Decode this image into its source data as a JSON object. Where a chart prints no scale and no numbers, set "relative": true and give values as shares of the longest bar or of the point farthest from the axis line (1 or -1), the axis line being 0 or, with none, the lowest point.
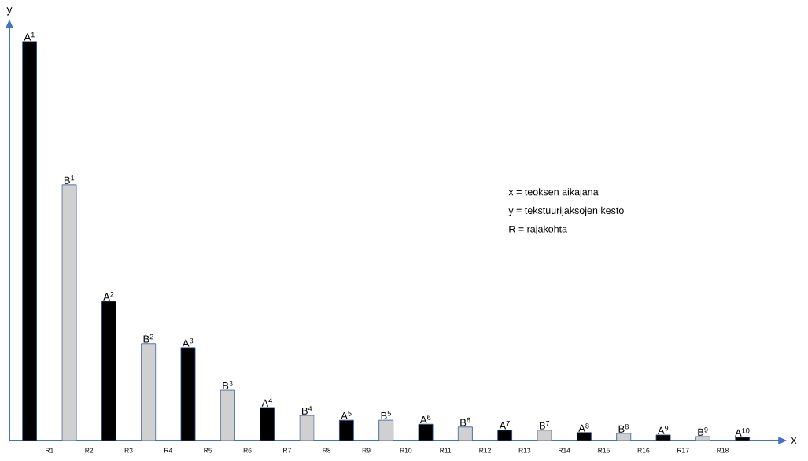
{
  "chart_data": {
    "type": "bar",
    "relative": true,
    "xlabel": "x",
    "ylabel": "y",
    "categories": [
      null,
      "R1",
      null,
      "R2",
      null,
      "R3",
      null,
      "R4",
      null,
      "R5",
      null,
      "R6",
      null,
      "R7",
      null,
      "R8",
      null,
      "R9",
      null,
      "R10",
      null,
      "R11",
      null,
      "R12",
      null,
      "R13",
      null,
      "R14",
      null,
      "R15",
      null,
      "R16",
      null,
      "R17",
      null,
      "R18",
      null
    ],
    "values": [
      1,
      null,
      0.641,
      null,
      0.349,
      null,
      0.243,
      null,
      0.233,
      null,
      0.126,
      null,
      0.083,
      null,
      0.063,
      null,
      0.051,
      null,
      0.051,
      null,
      0.041,
      null,
      0.034,
      null,
      0.026,
      null,
      0.026,
      null,
      0.02,
      null,
      0.018,
      null,
      0.014,
      null,
      0.01,
      null,
      0.008
    ],
    "colors": [
      "#000000",
      null,
      "#d0d0d0",
      null,
      "#000000",
      null,
      "#d0d0d0",
      null,
      "#000000",
      null,
      "#d0d0d0",
      null,
      "#000000",
      null,
      "#d0d0d0",
      null,
      "#000000",
      null,
      "#d0d0d0",
      null,
      "#000000",
      null,
      "#d0d0d0",
      null,
      "#000000",
      null,
      "#d0d0d0",
      null,
      "#000000",
      null,
      "#d0d0d0",
      null,
      "#000000",
      null,
      "#d0d0d0",
      null,
      "#000000"
    ],
    "annotations": [
      {
        "text": "A$^{1}$",
        "y": 1
      },
      {
        "text": "B$^{1}$",
        "y": 0.641
      },
      {
        "text": "A$^{2}$",
        "y": 0.349
      },
      {
        "text": "B$^{2}$",
        "y": 0.243
      },
      {
        "text": "A$^{3}$",
        "y": 0.233
      },
      {
        "text": "B$^{3}$",
        "y": 0.126
      },
      {
        "text": "A$^{4}$",
        "y": 0.083
      },
      {
        "text": "B$^{4}$",
        "y": 0.063
      },
      {
        "text": "A$^{5}$",
        "y": 0.051
      },
      {
        "text": "B$^{5}$",
        "y": 0.051
      },
      {
        "text": "A$^{6}$",
        "y": 0.041
      },
      {
        "text": "B$^{6}$",
        "y": 0.034
      },
      {
        "text": "A$^{7}$",
        "y": 0.026
      },
      {
        "text": "B$^{7}$",
        "y": 0.026
      },
      {
        "text": "A$^{8}$",
        "y": 0.02
      },
      {
        "text": "B$^{8}$",
        "y": 0.018
      },
      {
        "text": "A$^{9}$",
        "y": 0.014
      },
      {
        "text": "B$^{9}$",
        "y": 0.01
      },
      {
        "text": "A$^{10}$",
        "y": 0.008
      },
      "x = teoksen aikajana",
      "y = tekstuurijaksojen kesto",
      "R = rajakohta"
    ]
  }
}
